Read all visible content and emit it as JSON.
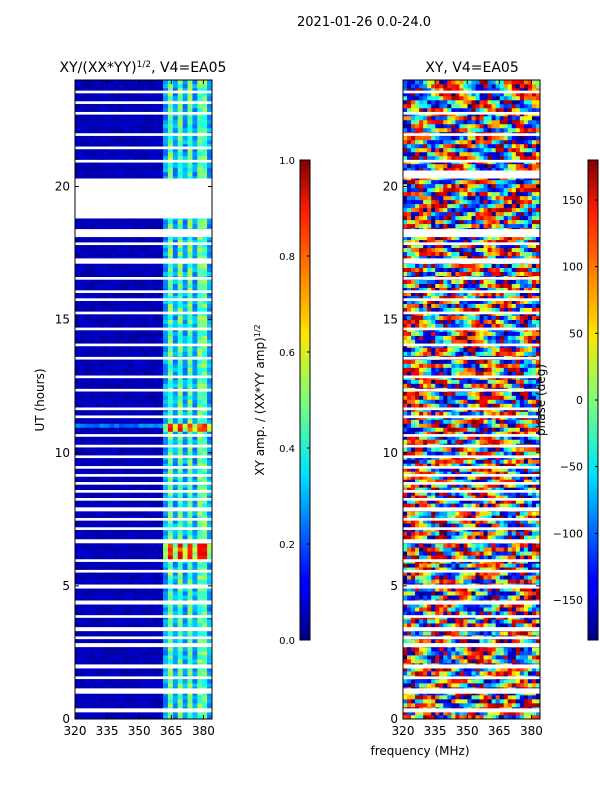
{
  "suptitle": "2021-01-26 0.0-24.0",
  "shared_xlabel": "frequency (MHz)",
  "chart_data": [
    {
      "type": "heatmap",
      "title": "XY/(XX*YY)",
      "title_exponent": "1/2",
      "title_suffix": ", V4=EA05",
      "xlabel": "",
      "ylabel": "UT (hours)",
      "xlim": [
        320,
        384
      ],
      "ylim": [
        0,
        24
      ],
      "xticks": [
        320,
        335,
        350,
        365,
        380
      ],
      "yticks": [
        0,
        5,
        10,
        15,
        20
      ],
      "colormap": "jet",
      "colorbar": {
        "label": "XY amp. / (XX*YY amp)",
        "label_exponent": "1/2",
        "range": [
          0.0,
          1.0
        ],
        "ticks": [
          0.0,
          0.2,
          0.4,
          0.6,
          0.8,
          1.0
        ],
        "tick_labels": [
          "0.0",
          "0.2",
          "0.4",
          "0.6",
          "0.8",
          "1.0"
        ]
      },
      "signal_band_mhz": [
        361,
        384
      ],
      "channel_stripes_mhz": [
        364.5,
        369.5,
        374.5,
        379.5
      ],
      "strong_intervals_hours": [
        [
          10.8,
          11.2
        ],
        [
          6.0,
          6.6
        ]
      ],
      "flagged_intervals_hours": [
        [
          0.25,
          0.4
        ],
        [
          0.95,
          1.15
        ],
        [
          1.5,
          1.6
        ],
        [
          1.9,
          2.05
        ],
        [
          2.7,
          2.85
        ],
        [
          3.0,
          3.1
        ],
        [
          3.3,
          3.45
        ],
        [
          3.8,
          3.9
        ],
        [
          4.3,
          4.45
        ],
        [
          4.9,
          5.05
        ],
        [
          5.5,
          5.6
        ],
        [
          5.9,
          6.0
        ],
        [
          6.6,
          6.75
        ],
        [
          7.1,
          7.2
        ],
        [
          7.45,
          7.55
        ],
        [
          7.8,
          7.95
        ],
        [
          8.2,
          8.3
        ],
        [
          8.5,
          8.6
        ],
        [
          8.8,
          8.9
        ],
        [
          9.1,
          9.2
        ],
        [
          9.4,
          9.5
        ],
        [
          9.8,
          9.9
        ],
        [
          10.2,
          10.3
        ],
        [
          10.6,
          10.7
        ],
        [
          11.3,
          11.4
        ],
        [
          11.6,
          11.7
        ],
        [
          12.3,
          12.4
        ],
        [
          12.8,
          12.9
        ],
        [
          13.5,
          13.6
        ],
        [
          14.0,
          14.1
        ],
        [
          14.6,
          14.7
        ],
        [
          15.2,
          15.3
        ],
        [
          15.7,
          15.8
        ],
        [
          16.0,
          16.1
        ],
        [
          16.5,
          16.6
        ],
        [
          17.1,
          17.3
        ],
        [
          17.8,
          17.9
        ],
        [
          18.1,
          18.4
        ],
        [
          18.8,
          20.3
        ],
        [
          20.9,
          21.0
        ],
        [
          21.4,
          21.5
        ],
        [
          21.9,
          22.0
        ],
        [
          22.7,
          22.8
        ],
        [
          23.1,
          23.2
        ],
        [
          23.5,
          23.6
        ]
      ]
    },
    {
      "type": "heatmap",
      "title": "XY, V4=EA05",
      "xlabel": "",
      "ylabel": "",
      "xlim": [
        320,
        384
      ],
      "ylim": [
        0,
        24
      ],
      "xticks": [
        320,
        335,
        350,
        365,
        380
      ],
      "yticks": [
        0,
        5,
        10,
        15,
        20
      ],
      "colormap": "jet",
      "colorbar": {
        "label": "phase (deg)",
        "range": [
          -180,
          180
        ],
        "ticks": [
          -150,
          -100,
          -50,
          0,
          50,
          100,
          150
        ],
        "tick_labels": [
          "−150",
          "−100",
          "−50",
          "0",
          "50",
          "100",
          "150"
        ]
      },
      "flagged_intervals_hours": [
        [
          0.25,
          0.4
        ],
        [
          0.95,
          1.15
        ],
        [
          1.5,
          1.6
        ],
        [
          1.9,
          2.05
        ],
        [
          2.7,
          2.85
        ],
        [
          3.0,
          3.1
        ],
        [
          3.3,
          3.45
        ],
        [
          3.8,
          3.9
        ],
        [
          4.3,
          4.45
        ],
        [
          4.9,
          5.05
        ],
        [
          5.5,
          5.6
        ],
        [
          5.9,
          6.0
        ],
        [
          6.6,
          6.75
        ],
        [
          7.1,
          7.2
        ],
        [
          7.45,
          7.55
        ],
        [
          7.8,
          7.95
        ],
        [
          8.2,
          8.3
        ],
        [
          8.5,
          8.6
        ],
        [
          8.8,
          8.9
        ],
        [
          9.1,
          9.2
        ],
        [
          9.4,
          9.5
        ],
        [
          9.8,
          9.9
        ],
        [
          10.2,
          10.3
        ],
        [
          10.6,
          10.7
        ],
        [
          11.3,
          11.4
        ],
        [
          11.6,
          11.7
        ],
        [
          12.3,
          12.4
        ],
        [
          12.8,
          12.9
        ],
        [
          13.5,
          13.6
        ],
        [
          14.0,
          14.1
        ],
        [
          14.6,
          14.7
        ],
        [
          15.2,
          15.3
        ],
        [
          15.7,
          15.8
        ],
        [
          16.0,
          16.1
        ],
        [
          16.5,
          16.6
        ],
        [
          17.1,
          17.3
        ],
        [
          17.8,
          17.9
        ],
        [
          18.1,
          18.4
        ],
        [
          20.3,
          20.6
        ],
        [
          20.9,
          21.0
        ],
        [
          21.9,
          22.0
        ],
        [
          22.7,
          22.8
        ],
        [
          23.5,
          23.6
        ]
      ]
    }
  ]
}
